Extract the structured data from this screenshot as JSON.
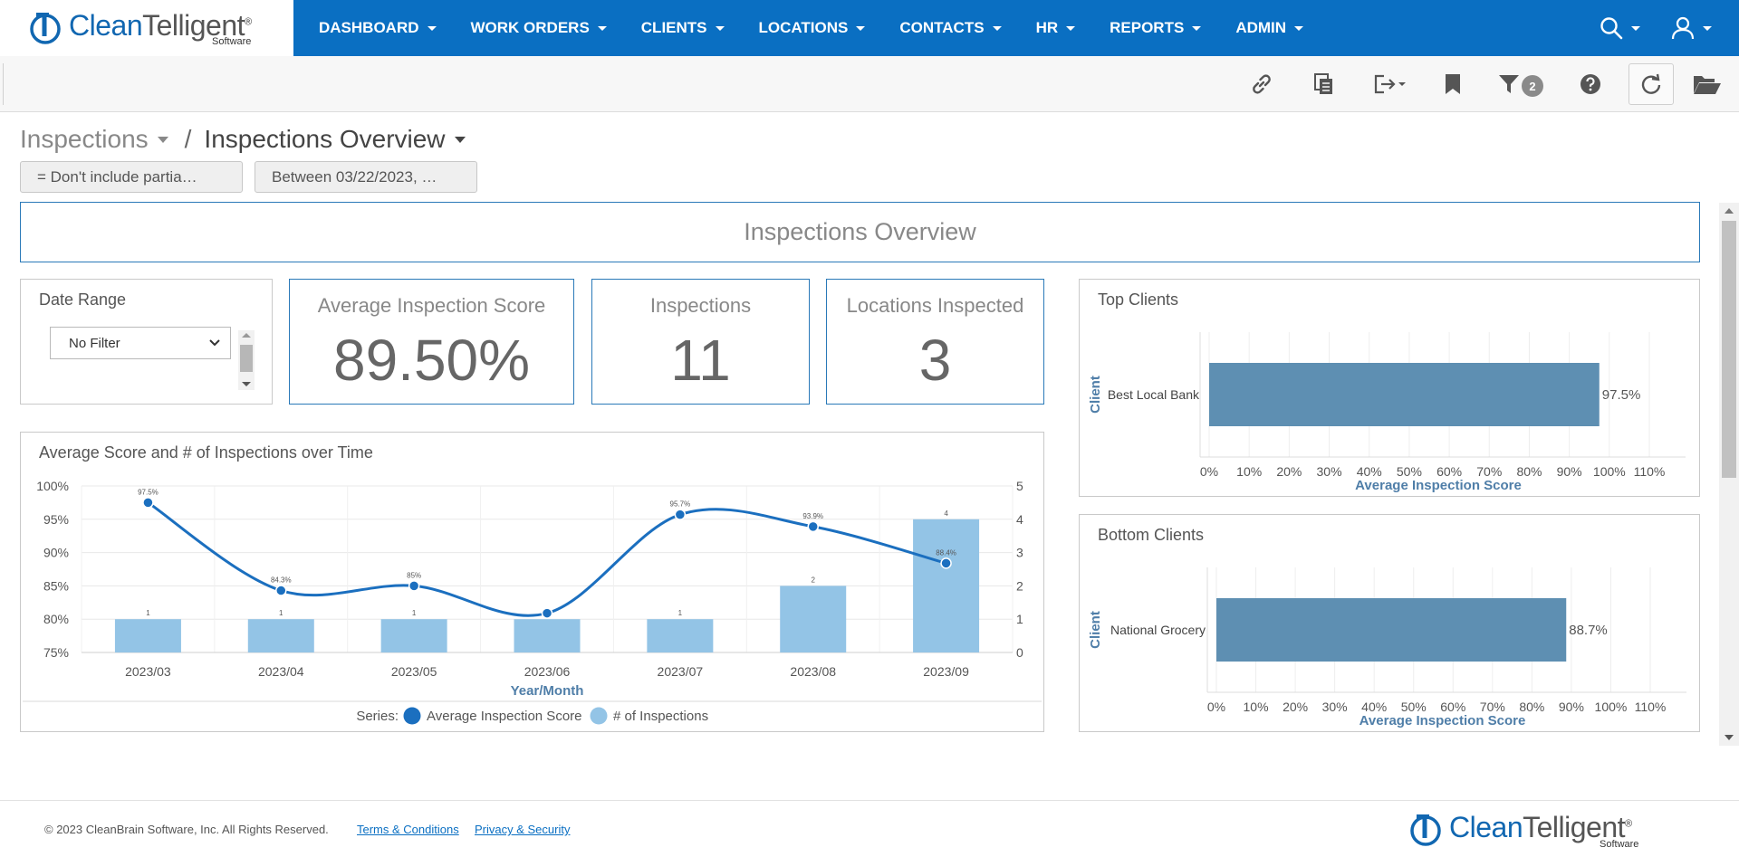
{
  "app": {
    "logo_part1": "Clean",
    "logo_part2": "Telligent",
    "logo_reg": "®",
    "logo_sub": "Software"
  },
  "nav": {
    "items": [
      {
        "label": "DASHBOARD"
      },
      {
        "label": "WORK ORDERS"
      },
      {
        "label": "CLIENTS"
      },
      {
        "label": "LOCATIONS"
      },
      {
        "label": "CONTACTS"
      },
      {
        "label": "HR"
      },
      {
        "label": "REPORTS"
      },
      {
        "label": "ADMIN"
      }
    ],
    "icons": [
      "search-icon",
      "user-icon"
    ]
  },
  "toolbar": {
    "icons": [
      "link-icon",
      "copy-icon",
      "export-icon",
      "bookmark-icon",
      "filter-icon",
      "help-icon",
      "refresh-icon",
      "folder-icon"
    ],
    "filter_count": "2"
  },
  "breadcrumb": {
    "parent": "Inspections",
    "separator": "/",
    "current": "Inspections Overview"
  },
  "filters": [
    {
      "label": "= Don't include partia…"
    },
    {
      "label": "Between 03/22/2023, …"
    }
  ],
  "dashboard": {
    "title": "Inspections Overview",
    "date_range": {
      "title": "Date Range",
      "selected": "No Filter"
    },
    "kpis": {
      "avg_score": {
        "label": "Average Inspection Score",
        "value": "89.50%"
      },
      "inspections": {
        "label": "Inspections",
        "value": "11"
      },
      "locations": {
        "label": "Locations Inspected",
        "value": "3"
      }
    },
    "time_chart_title": "Average Score and # of Inspections over Time",
    "top_clients_title": "Top Clients",
    "bottom_clients_title": "Bottom Clients"
  },
  "chart_data": [
    {
      "type": "bar+line",
      "xlabel": "Year/Month",
      "categories": [
        "2023/03",
        "2023/04",
        "2023/05",
        "2023/06",
        "2023/07",
        "2023/08",
        "2023/09"
      ],
      "series": [
        {
          "name": "Average Inspection Score",
          "type": "line",
          "axis": "left",
          "values": [
            97.5,
            84.3,
            85,
            80.9,
            95.7,
            93.9,
            88.4
          ],
          "labels": [
            "97.5%",
            "84.3%",
            "85%",
            "",
            "95.7%",
            "93.9%",
            "88.4%"
          ]
        },
        {
          "name": "# of Inspections",
          "type": "bar",
          "axis": "right",
          "values": [
            1,
            1,
            1,
            1,
            1,
            2,
            4
          ],
          "labels": [
            "1",
            "1",
            "1",
            "",
            "1",
            "2",
            "4"
          ]
        }
      ],
      "y_left": {
        "min": 75,
        "max": 100,
        "ticks": [
          "75%",
          "80%",
          "85%",
          "90%",
          "95%",
          "100%"
        ]
      },
      "y_right": {
        "min": 0,
        "max": 5,
        "ticks": [
          "0",
          "1",
          "2",
          "3",
          "4",
          "5"
        ]
      },
      "legend_prefix": "Series:",
      "legend_position": "bottom",
      "colors": {
        "line": "#1b6fbf",
        "bar": "#93c4e6"
      }
    },
    {
      "type": "bar",
      "orientation": "horizontal",
      "ylabel": "Client",
      "xlabel": "Average Inspection Score",
      "categories": [
        "Best Local Bank"
      ],
      "values": [
        97.5
      ],
      "value_labels": [
        "97.5%"
      ],
      "xticks": [
        "0%",
        "10%",
        "20%",
        "30%",
        "40%",
        "50%",
        "60%",
        "70%",
        "80%",
        "90%",
        "100%",
        "110%"
      ],
      "xlim": [
        0,
        110
      ],
      "color": "#5e8fb2"
    },
    {
      "type": "bar",
      "orientation": "horizontal",
      "ylabel": "Client",
      "xlabel": "Average Inspection Score",
      "categories": [
        "National Grocery"
      ],
      "values": [
        88.7
      ],
      "value_labels": [
        "88.7%"
      ],
      "xticks": [
        "0%",
        "10%",
        "20%",
        "30%",
        "40%",
        "50%",
        "60%",
        "70%",
        "80%",
        "90%",
        "100%",
        "110%"
      ],
      "xlim": [
        0,
        110
      ],
      "color": "#5e8fb2"
    }
  ],
  "footer": {
    "copyright": "© 2023 CleanBrain Software, Inc. All Rights Reserved.",
    "terms": "Terms & Conditions",
    "privacy": "Privacy & Security"
  }
}
